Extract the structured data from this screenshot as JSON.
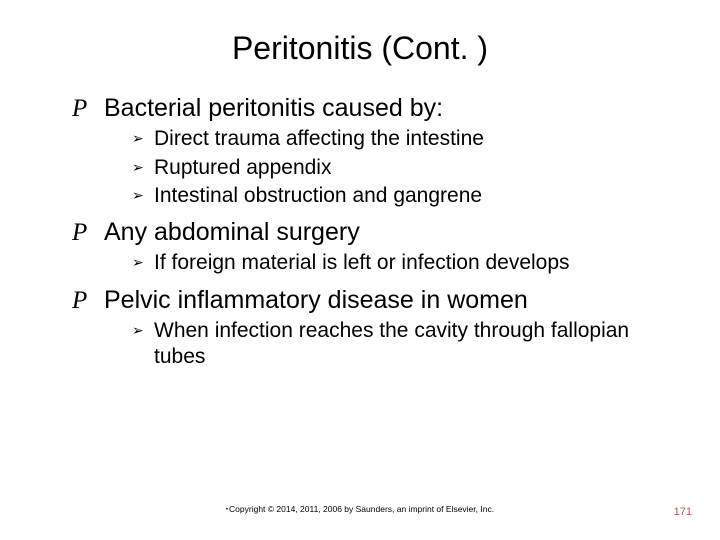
{
  "colors": {
    "background": "#ffffff",
    "text": "#000000",
    "pagenum": "#b85450"
  },
  "title": "Peritonitis (Cont. )",
  "bullets": [
    {
      "text": "Bacterial peritonitis caused by:",
      "children": [
        "Direct trauma affecting the intestine",
        "Ruptured appendix",
        "Intestinal obstruction and gangrene"
      ]
    },
    {
      "text": "Any abdominal surgery",
      "children": [
        "If foreign material is left or infection develops"
      ]
    },
    {
      "text": "Pelvic inflammatory disease in women",
      "children": [
        "When infection reaches the cavity through fallopian tubes"
      ]
    }
  ],
  "copyright": "Copyright © 2014, 2011, 2006 by Saunders, an imprint of Elsevier, Inc.",
  "page_number": "171",
  "bullet_glyphs": {
    "level1": "P",
    "level2": "➢"
  }
}
